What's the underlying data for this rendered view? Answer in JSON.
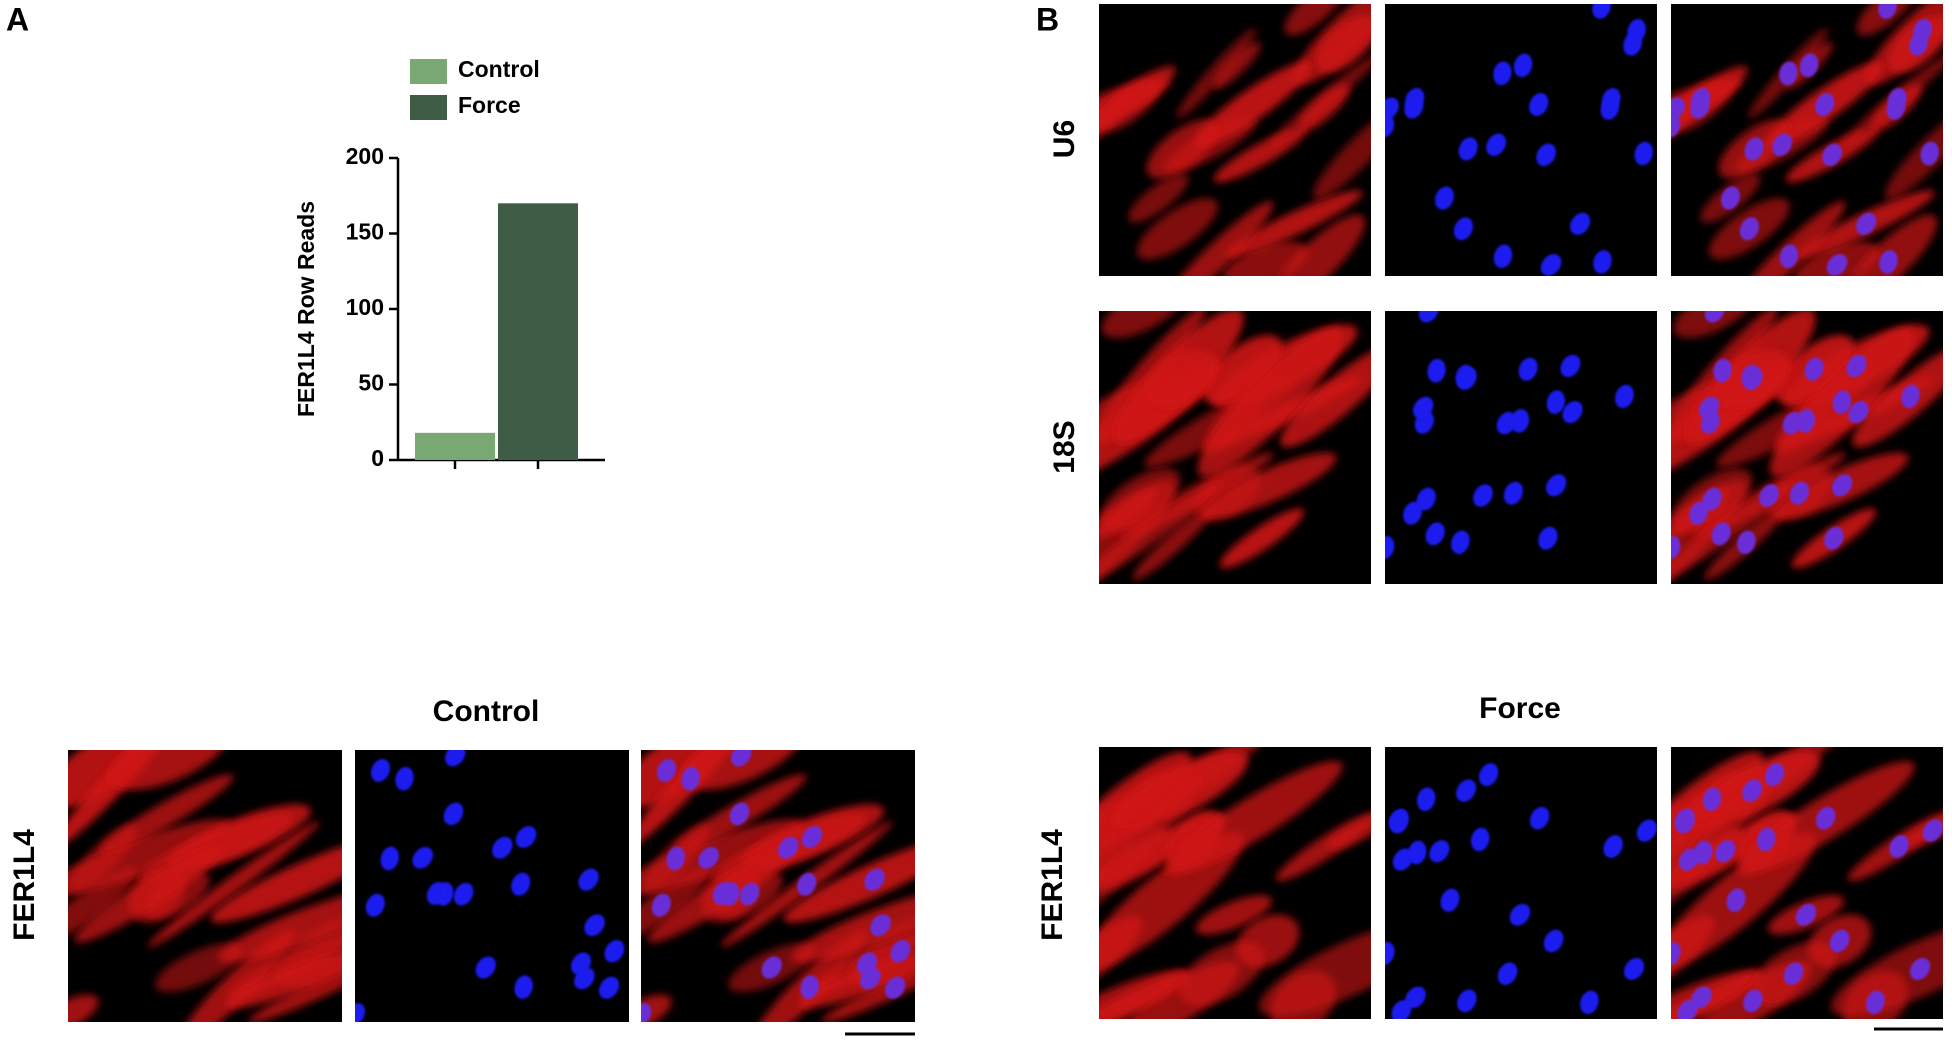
{
  "chart_data": {
    "type": "bar",
    "ylabel": "FER1L4 Row Reads",
    "categories": [
      null,
      null
    ],
    "series": [
      {
        "name": "Control",
        "color": "#7aa874",
        "values": [
          18,
          null
        ]
      },
      {
        "name": "Force",
        "color": "#3f5c47",
        "values": [
          null,
          170
        ]
      }
    ],
    "ylim": [
      0,
      200
    ],
    "yticks": [
      0,
      50,
      100,
      150,
      200
    ]
  },
  "figure": {
    "panel_a": "A",
    "panel_b": "B",
    "rows_b": [
      "U6",
      "18S"
    ],
    "columns_c": [
      "Control",
      "Force"
    ],
    "rows_c": [
      "FER1L4",
      "FER1L4"
    ]
  }
}
